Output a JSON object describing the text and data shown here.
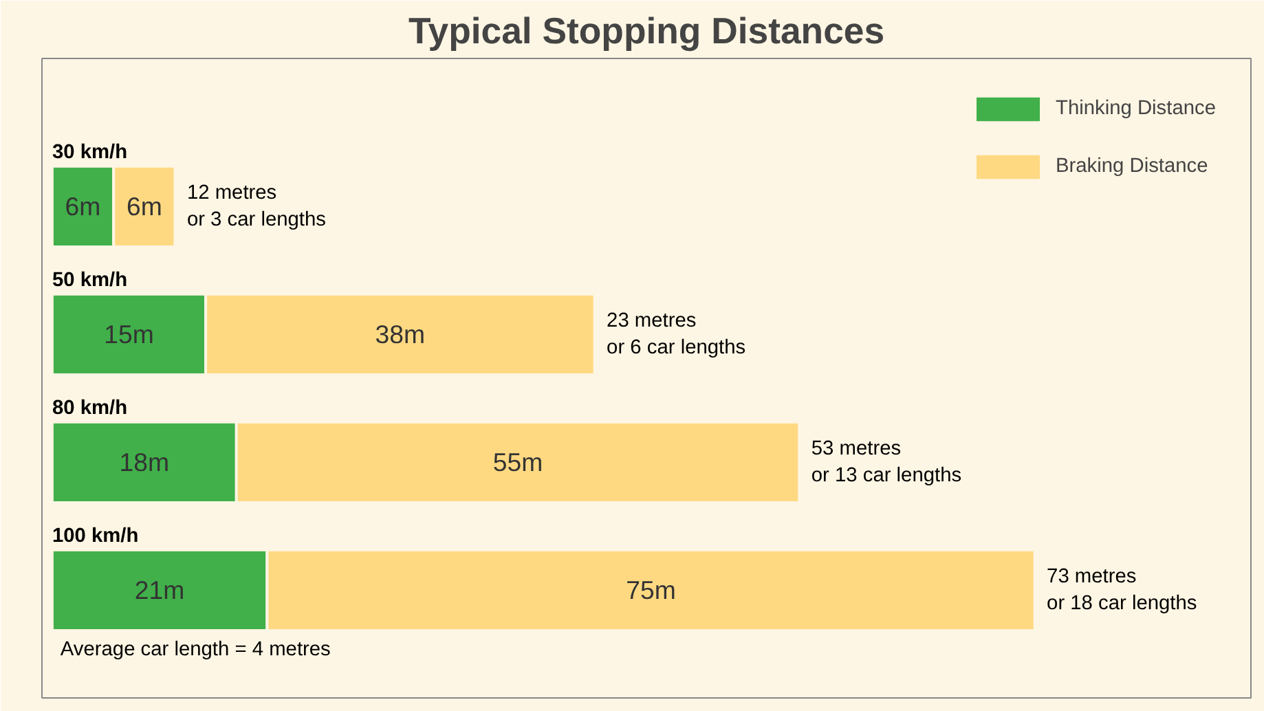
{
  "chart_data": {
    "type": "bar",
    "orientation": "horizontal",
    "stacked": true,
    "title": "Typical Stopping Distances",
    "categories": [
      "30 km/h",
      "50 km/h",
      "80 km/h",
      "100 km/h"
    ],
    "series": [
      {
        "name": "Thinking Distance",
        "color": "#41b04a",
        "values": [
          6,
          15,
          18,
          21
        ],
        "value_labels": [
          "6m",
          "15m",
          "18m",
          "21m"
        ]
      },
      {
        "name": "Braking Distance",
        "color": "#fed982",
        "values": [
          6,
          38,
          55,
          75
        ],
        "value_labels": [
          "6m",
          "38m",
          "55m",
          "75m"
        ]
      }
    ],
    "annotations": [
      "12 metres\nor 3 car lengths",
      "23 metres\nor 6 car lengths",
      "53 metres\nor 13 car lengths",
      "73 metres\nor 18 car lengths",
      "Average car length = 4 metres"
    ],
    "legend": "top right",
    "tick_labels": false,
    "grid": false
  }
}
